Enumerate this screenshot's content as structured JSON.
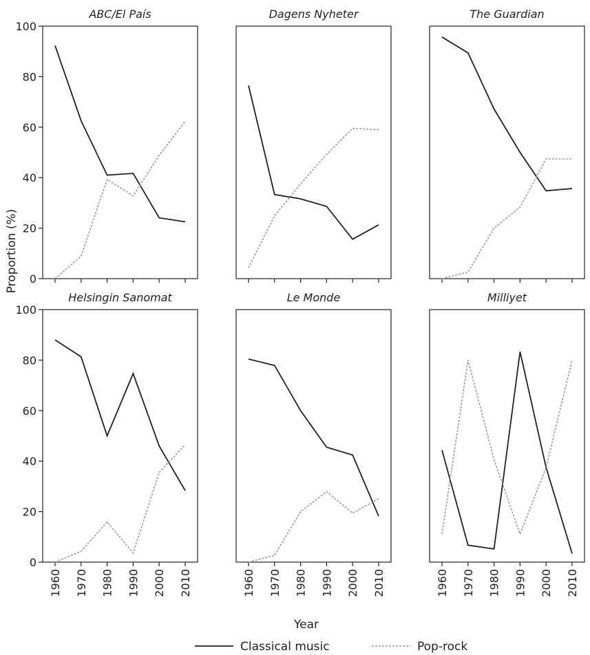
{
  "chart_data": {
    "type": "line",
    "layout": "small multiples, 2 rows x 3 columns, shared axes",
    "ylabel": "Proportion (%)",
    "xlabel": "Year",
    "ylim": [
      0,
      100
    ],
    "yticks": [
      0,
      20,
      40,
      60,
      80,
      100
    ],
    "x": [
      1960,
      1970,
      1980,
      1990,
      2000,
      2010
    ],
    "grid": false,
    "legend_position": "bottom",
    "series_styles": [
      {
        "name": "Classical music",
        "color": "#231f20",
        "dash": "solid"
      },
      {
        "name": "Pop-rock",
        "color": "#9a9a9a",
        "dash": "dotted"
      }
    ],
    "panels": [
      {
        "title": "ABC/El País",
        "series": [
          {
            "name": "Classical music",
            "values": [
              92.3,
              62.5,
              41.0,
              41.7,
              24.1,
              22.5
            ]
          },
          {
            "name": "Pop-rock",
            "values": [
              0,
              8.9,
              39.3,
              32.8,
              48.8,
              62.3
            ]
          }
        ]
      },
      {
        "title": "Dagens Nyheter",
        "series": [
          {
            "name": "Classical music",
            "values": [
              76.5,
              33.3,
              31.6,
              28.6,
              15.6,
              21.3
            ]
          },
          {
            "name": "Pop-rock",
            "values": [
              4.3,
              24.9,
              37.5,
              49.2,
              59.5,
              59.0
            ]
          }
        ]
      },
      {
        "title": "The Guardian",
        "series": [
          {
            "name": "Classical music",
            "values": [
              95.7,
              89.4,
              67.2,
              50.0,
              34.8,
              35.7
            ]
          },
          {
            "name": "Pop-rock",
            "values": [
              0,
              2.6,
              20.0,
              28.3,
              47.4,
              47.4
            ]
          }
        ]
      },
      {
        "title": "Helsingin Sanomat",
        "series": [
          {
            "name": "Classical music",
            "values": [
              88.0,
              81.3,
              50.0,
              74.7,
              46.0,
              28.3
            ]
          },
          {
            "name": "Pop-rock",
            "values": [
              0,
              4.3,
              15.9,
              3.6,
              35.5,
              46.5
            ]
          }
        ]
      },
      {
        "title": "Le Monde",
        "series": [
          {
            "name": "Classical music",
            "values": [
              80.4,
              77.9,
              60.0,
              45.5,
              42.4,
              18.2
            ]
          },
          {
            "name": "Pop-rock",
            "values": [
              0,
              2.7,
              20.0,
              27.9,
              19.4,
              25.1
            ]
          }
        ]
      },
      {
        "title": "Milliyet",
        "series": [
          {
            "name": "Classical music",
            "values": [
              44.4,
              6.7,
              5.2,
              83.3,
              37.5,
              3.4
            ]
          },
          {
            "name": "Pop-rock",
            "values": [
              11.1,
              80.0,
              40.6,
              11.1,
              37.5,
              80.0
            ]
          }
        ]
      }
    ]
  }
}
